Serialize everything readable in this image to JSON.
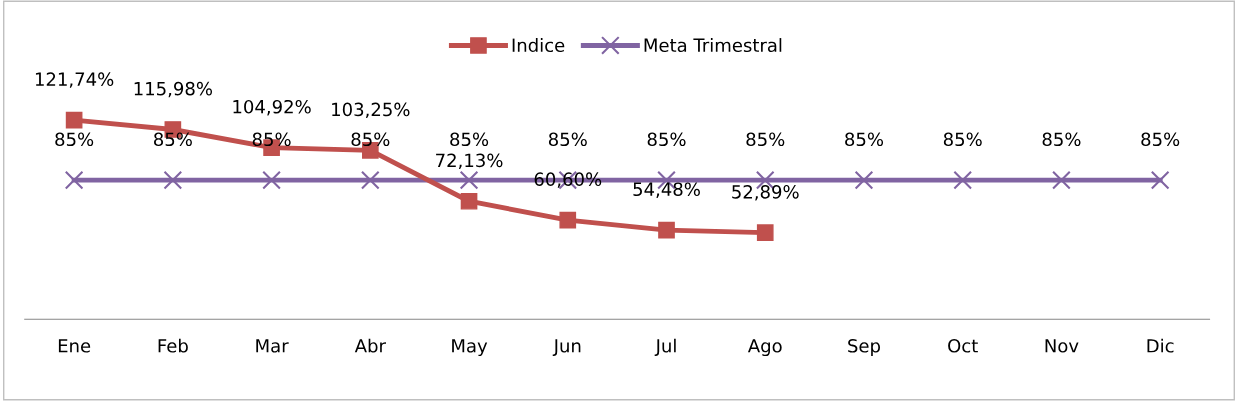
{
  "chart_data": {
    "type": "line",
    "categories": [
      "Ene",
      "Feb",
      "Mar",
      "Abr",
      "May",
      "Jun",
      "Jul",
      "Ago",
      "Sep",
      "Oct",
      "Nov",
      "Dic"
    ],
    "series": [
      {
        "name": "Indice",
        "color": "#c0504d",
        "marker": "square",
        "values": [
          121.74,
          115.98,
          104.92,
          103.25,
          72.13,
          60.6,
          54.48,
          52.89,
          null,
          null,
          null,
          null
        ],
        "value_labels": [
          "121,74%",
          "115,98%",
          "104,92%",
          "103,25%",
          "72,13%",
          "60,60%",
          "54,48%",
          "52,89%",
          null,
          null,
          null,
          null
        ]
      },
      {
        "name": "Meta Trimestral",
        "color": "#8064a2",
        "marker": "cross",
        "values": [
          85,
          85,
          85,
          85,
          85,
          85,
          85,
          85,
          85,
          85,
          85,
          85
        ],
        "value_labels": [
          "85%",
          "85%",
          "85%",
          "85%",
          "85%",
          "85%",
          "85%",
          "85%",
          "85%",
          "85%",
          "85%",
          "85%"
        ]
      }
    ],
    "legend": "top",
    "grid": false
  }
}
